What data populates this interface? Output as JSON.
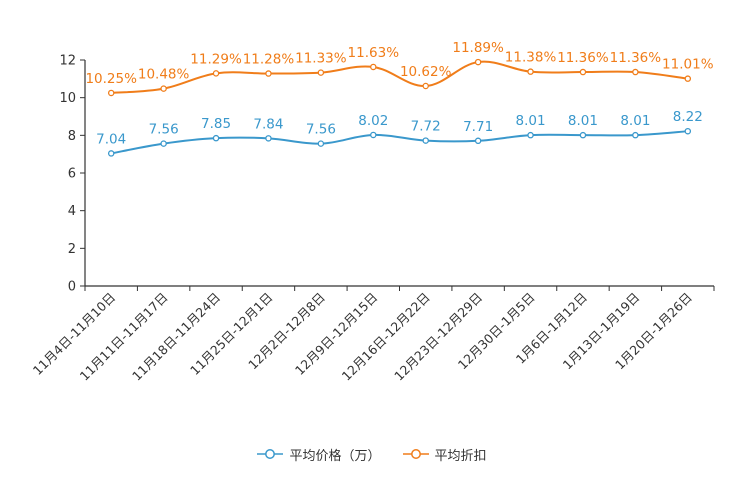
{
  "chart_data": {
    "type": "line",
    "title": "",
    "xlabel": "",
    "ylabel": "",
    "ylim": [
      0,
      12
    ],
    "yticks": [
      0,
      2,
      4,
      6,
      8,
      10,
      12
    ],
    "grid": false,
    "legend_position": "bottom-center",
    "categories": [
      "11月4日-11月10日",
      "11月11日-11月17日",
      "11月18日-11月24日",
      "11月25日-12月1日",
      "12月2日-12月8日",
      "12月9日-12月15日",
      "12月16日-12月22日",
      "12月23日-12月29日",
      "12月30日-1月5日",
      "1月6日-1月12日",
      "1月13日-1月19日",
      "1月20日-1月26日"
    ],
    "series": [
      {
        "name": "平均价格（万）",
        "color": "#3a98cc",
        "values": [
          7.04,
          7.56,
          7.85,
          7.84,
          7.56,
          8.02,
          7.72,
          7.71,
          8.01,
          8.01,
          8.01,
          8.22
        ],
        "labels": [
          "7.04",
          "7.56",
          "7.85",
          "7.84",
          "7.56",
          "8.02",
          "7.72",
          "7.71",
          "8.01",
          "8.01",
          "8.01",
          "8.22"
        ]
      },
      {
        "name": "平均折扣",
        "color": "#f07d1a",
        "values": [
          10.25,
          10.48,
          11.29,
          11.28,
          11.33,
          11.63,
          10.62,
          11.89,
          11.38,
          11.36,
          11.36,
          11.01
        ],
        "labels": [
          "10.25%",
          "10.48%",
          "11.29%",
          "11.28%",
          "11.33%",
          "11.63%",
          "10.62%",
          "11.89%",
          "11.38%",
          "11.36%",
          "11.36%",
          "11.01%"
        ]
      }
    ]
  }
}
